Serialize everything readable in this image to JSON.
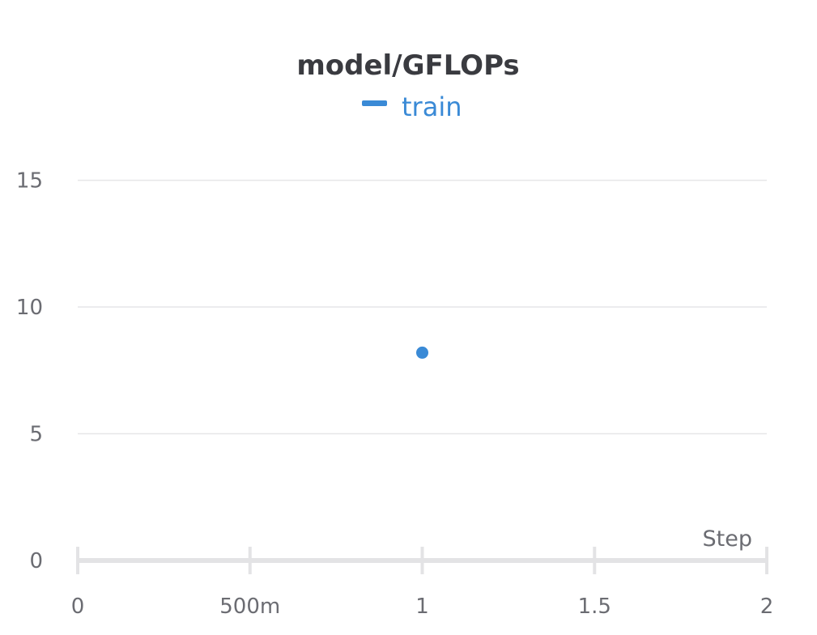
{
  "chart_data": {
    "type": "scatter",
    "title": "model/GFLOPs",
    "xlabel": "Step",
    "ylabel": "",
    "xlim": [
      0,
      2
    ],
    "ylim": [
      0,
      17
    ],
    "x_ticks": [
      0,
      0.5,
      1,
      1.5,
      2
    ],
    "x_tick_labels": [
      "0",
      "500m",
      "1",
      "1.5",
      "2"
    ],
    "y_ticks": [
      0,
      5,
      10,
      15
    ],
    "y_tick_labels": [
      "0",
      "5",
      "10",
      "15"
    ],
    "grid": true,
    "legend_placement": "top-center",
    "series": [
      {
        "name": "train",
        "color": "#3a8ad6",
        "points": [
          {
            "x": 1,
            "y": 8.2
          }
        ]
      }
    ]
  }
}
